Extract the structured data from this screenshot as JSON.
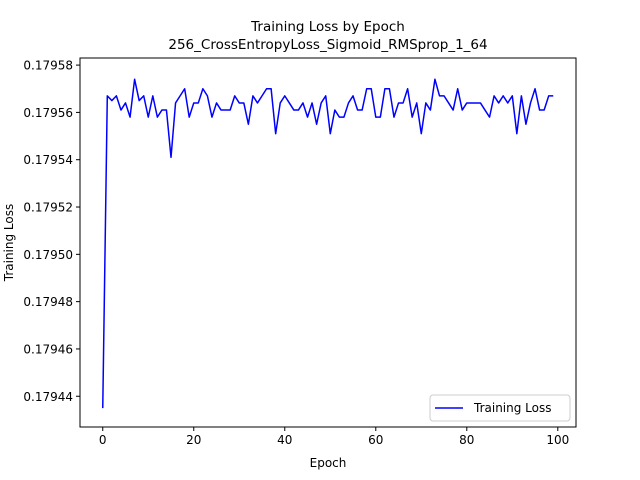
{
  "chart_data": {
    "type": "line",
    "title": "Training Loss by Epoch",
    "subtitle": "256_CrossEntropyLoss_Sigmoid_RMSprop_1_64",
    "xlabel": "Epoch",
    "ylabel": "Training Loss",
    "xlim": [
      -5,
      104
    ],
    "ylim": [
      0.179427,
      0.179583
    ],
    "xticks": [
      0,
      20,
      40,
      60,
      80,
      100
    ],
    "xtick_labels": [
      "0",
      "20",
      "40",
      "60",
      "80",
      "100"
    ],
    "yticks": [
      0.17944,
      0.17946,
      0.17948,
      0.1795,
      0.17952,
      0.17954,
      0.17956,
      0.17958
    ],
    "ytick_labels": [
      "0.17944",
      "0.17946",
      "0.17948",
      "0.17950",
      "0.17952",
      "0.17954",
      "0.17956",
      "0.17958"
    ],
    "grid": false,
    "legend_position": "lower-right",
    "series": [
      {
        "name": "Training Loss",
        "color": "#0000ff",
        "x": [
          0,
          1,
          2,
          3,
          4,
          5,
          6,
          7,
          8,
          9,
          10,
          11,
          12,
          13,
          14,
          15,
          16,
          17,
          18,
          19,
          20,
          21,
          22,
          23,
          24,
          25,
          26,
          27,
          28,
          29,
          30,
          31,
          32,
          33,
          34,
          35,
          36,
          37,
          38,
          39,
          40,
          41,
          42,
          43,
          44,
          45,
          46,
          47,
          48,
          49,
          50,
          51,
          52,
          53,
          54,
          55,
          56,
          57,
          58,
          59,
          60,
          61,
          62,
          63,
          64,
          65,
          66,
          67,
          68,
          69,
          70,
          71,
          72,
          73,
          74,
          75,
          76,
          77,
          78,
          79,
          80,
          81,
          82,
          83,
          84,
          85,
          86,
          87,
          88,
          89,
          90,
          91,
          92,
          93,
          94,
          95,
          96,
          97,
          98,
          99
        ],
        "values": [
          0.179435,
          0.179567,
          0.179565,
          0.179567,
          0.179561,
          0.179564,
          0.179558,
          0.179574,
          0.179565,
          0.179567,
          0.179558,
          0.179567,
          0.179558,
          0.179561,
          0.179561,
          0.179541,
          0.179564,
          0.179567,
          0.17957,
          0.179558,
          0.179564,
          0.179564,
          0.17957,
          0.179567,
          0.179558,
          0.179564,
          0.179561,
          0.179561,
          0.179561,
          0.179567,
          0.179564,
          0.179564,
          0.179555,
          0.179567,
          0.179564,
          0.179567,
          0.17957,
          0.17957,
          0.179551,
          0.179564,
          0.179567,
          0.179564,
          0.179561,
          0.179561,
          0.179564,
          0.179558,
          0.179564,
          0.179555,
          0.179564,
          0.179567,
          0.179551,
          0.179561,
          0.179558,
          0.179558,
          0.179564,
          0.179567,
          0.179561,
          0.179561,
          0.17957,
          0.17957,
          0.179558,
          0.179558,
          0.17957,
          0.17957,
          0.179558,
          0.179564,
          0.179564,
          0.17957,
          0.179558,
          0.179564,
          0.179551,
          0.179564,
          0.179561,
          0.179574,
          0.179567,
          0.179567,
          0.179564,
          0.179561,
          0.17957,
          0.179561,
          0.179564,
          0.179564,
          0.179564,
          0.179564,
          0.179561,
          0.179558,
          0.179567,
          0.179564,
          0.179567,
          0.179564,
          0.179567,
          0.179551,
          0.179567,
          0.179555,
          0.179564,
          0.17957,
          0.179561,
          0.179561,
          0.179567,
          0.179567
        ]
      }
    ]
  }
}
